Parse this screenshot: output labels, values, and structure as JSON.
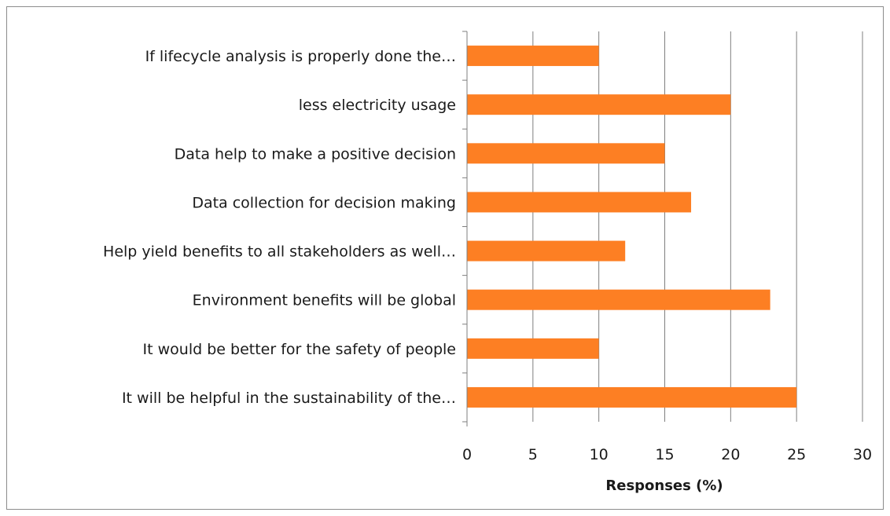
{
  "chart_data": {
    "type": "bar",
    "orientation": "horizontal",
    "categories": [
      "If lifecycle analysis is properly done the…",
      "less electricity usage",
      "Data help to make a positive decision",
      "Data collection for decision making",
      "Help yield benefits to all stakeholders as well…",
      "Environment benefits will be global",
      "It would be better for the safety of people",
      "It will be helpful in the sustainability of the…"
    ],
    "values": [
      10,
      20,
      15,
      17,
      12,
      23,
      10,
      25
    ],
    "title": "",
    "xlabel": "Responses (%)",
    "ylabel": "",
    "xlim": [
      0,
      30
    ],
    "xticks": [
      0,
      5,
      10,
      15,
      20,
      25,
      30
    ],
    "grid": "vertical",
    "legend": "none",
    "bar_color": "#fd7f23",
    "grid_color": "#7f7f7f"
  }
}
